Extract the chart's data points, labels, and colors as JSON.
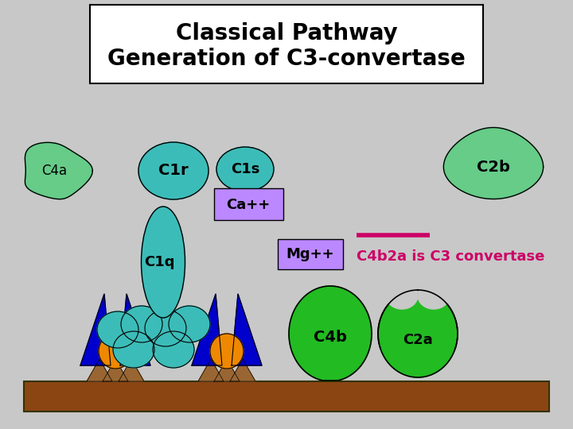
{
  "bg_color": "#c8c8c8",
  "title": "Classical Pathway\nGeneration of C3-convertase",
  "title_box_color": "#ffffff",
  "title_text_color": "#000000",
  "teal": "#3cbcb8",
  "light_green": "#66cc88",
  "bright_green": "#22bb22",
  "orange": "#ee8800",
  "blue": "#0000cc",
  "brown_bar": "#8B4513",
  "brown_mound": "#996633",
  "lavender": "#bb88ff",
  "pink": "#cc0066",
  "label_C4a": "C4a",
  "label_C1r": "C1r",
  "label_C1s": "C1s",
  "label_Ca": "Ca++",
  "label_C1q": "C1q",
  "label_Mg": "Mg++",
  "label_C2b": "C2b",
  "label_C4b": "C4b",
  "label_C2a": "C2a",
  "label_convertase": "C4b2a is C3 convertase"
}
